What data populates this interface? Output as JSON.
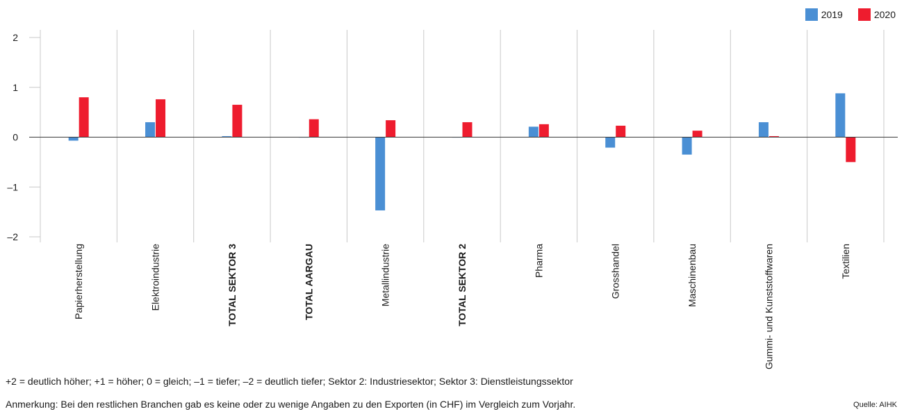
{
  "chart_data": {
    "type": "bar",
    "categories": [
      "Papierherstellung",
      "Elektroindustrie",
      "TOTAL SEKTOR 3",
      "TOTAL AARGAU",
      "Metallindustrie",
      "TOTAL SEKTOR 2",
      "Pharma",
      "Grosshandel",
      "Maschinenbau",
      "Gummi- und Kunststoffwaren",
      "Textilien"
    ],
    "bold_categories": [
      "TOTAL SEKTOR 3",
      "TOTAL AARGAU",
      "TOTAL SEKTOR 2"
    ],
    "series": [
      {
        "name": "2019",
        "color": "#4a8fd4",
        "values": [
          -0.07,
          0.3,
          0.02,
          0.0,
          -1.47,
          0.0,
          0.21,
          -0.21,
          -0.35,
          0.3,
          0.88
        ]
      },
      {
        "name": "2020",
        "color": "#ee1c2e",
        "values": [
          0.8,
          0.76,
          0.65,
          0.36,
          0.34,
          0.3,
          0.26,
          0.23,
          0.13,
          0.02,
          -0.5
        ]
      }
    ],
    "yticks": [
      "2",
      "1",
      "0",
      "–1",
      "–2"
    ],
    "ytick_values": [
      2,
      1,
      0,
      -1,
      -2
    ],
    "ylim": [
      -2,
      2
    ],
    "grid": true,
    "legend_position": "top-right"
  },
  "footnotes": {
    "scale_note": "+2 = deutlich höher; +1 = höher; 0 = gleich; –1 = tiefer; –2 = deutlich tiefer; Sektor 2: Industriesektor; Sektor 3: Dienstleistungssektor",
    "remark": "Anmerkung: Bei den restlichen Branchen gab es keine oder zu wenige Angaben zu den Exporten (in CHF) im Vergleich zum Vorjahr.",
    "source": "Quelle: AIHK"
  }
}
